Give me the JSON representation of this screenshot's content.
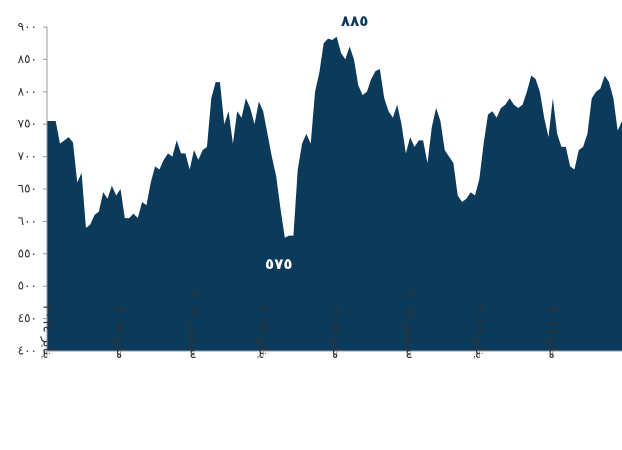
{
  "chart_data": {
    "type": "area",
    "color": "#0b3a5a",
    "categories": [
      "يناير ٢٠١٤",
      null,
      null,
      null,
      null,
      null,
      null,
      null,
      null,
      null,
      null,
      null,
      null,
      null,
      null,
      null,
      null,
      "مايو ٢٠١٤",
      null,
      null,
      null,
      null,
      null,
      null,
      null,
      null,
      null,
      null,
      null,
      null,
      null,
      null,
      null,
      null,
      "سبتمبر ٢٠١٤",
      null,
      null,
      null,
      null,
      null,
      null,
      null,
      null,
      null,
      null,
      null,
      null,
      null,
      null,
      null,
      "يناير ٢٠١٥",
      null,
      null,
      null,
      null,
      null,
      null,
      null,
      null,
      null,
      null,
      null,
      null,
      null,
      null,
      null,
      null,
      "مايو ٢٠١٥",
      null,
      null,
      null,
      null,
      null,
      null,
      null,
      null,
      null,
      null,
      null,
      null,
      null,
      null,
      null,
      null,
      "سبتمبر ٢٠١٥",
      null,
      null,
      null,
      null,
      null,
      null,
      null,
      null,
      null,
      null,
      null,
      null,
      null,
      null,
      null,
      "يناير ٢٠١٦",
      null,
      null,
      null,
      null,
      null,
      null,
      null,
      null,
      null,
      null,
      null,
      null,
      null,
      null,
      null,
      null,
      "مايو ٢٠١٦",
      null,
      null,
      null,
      null,
      null,
      null,
      null,
      null,
      null,
      null,
      null,
      null,
      null,
      null,
      null,
      null
    ],
    "values": [
      755,
      755,
      755,
      720,
      725,
      730,
      722,
      660,
      675,
      590,
      595,
      610,
      615,
      645,
      635,
      655,
      640,
      650,
      605,
      605,
      612,
      605,
      630,
      625,
      660,
      685,
      680,
      695,
      705,
      700,
      725,
      705,
      705,
      680,
      710,
      695,
      710,
      715,
      790,
      815,
      815,
      750,
      770,
      720,
      770,
      760,
      790,
      775,
      750,
      785,
      770,
      735,
      700,
      670,
      620,
      575,
      578,
      578,
      680,
      720,
      735,
      720,
      800,
      830,
      875,
      882,
      880,
      885,
      860,
      850,
      870,
      850,
      810,
      795,
      800,
      820,
      832,
      835,
      790,
      770,
      760,
      780,
      750,
      705,
      730,
      715,
      725,
      725,
      690,
      745,
      775,
      755,
      710,
      700,
      690,
      640,
      630,
      635,
      645,
      640,
      665,
      720,
      765,
      770,
      760,
      775,
      780,
      790,
      780,
      775,
      780,
      800,
      825,
      820,
      800,
      760,
      730,
      790,
      735,
      715,
      715,
      685,
      680,
      710,
      715,
      735,
      790,
      800,
      805,
      825,
      815,
      790,
      740,
      755
    ],
    "ylim": [
      400,
      900
    ],
    "yticks": [
      {
        "value": 400,
        "label": "٤٠٠"
      },
      {
        "value": 450,
        "label": "٤٥٠"
      },
      {
        "value": 500,
        "label": "٥٠٠"
      },
      {
        "value": 550,
        "label": "٥٥٠"
      },
      {
        "value": 600,
        "label": "٦٠٠"
      },
      {
        "value": 650,
        "label": "٦٥٠"
      },
      {
        "value": 700,
        "label": "٧٠٠"
      },
      {
        "value": 750,
        "label": "٧٥٠"
      },
      {
        "value": 800,
        "label": "٨٠٠"
      },
      {
        "value": 850,
        "label": "٨٥٠"
      },
      {
        "value": 900,
        "label": "٩٠٠"
      }
    ],
    "annotations": [
      {
        "value": 885,
        "label": "٨٨٥"
      },
      {
        "value": 575,
        "label": "٥٧٥"
      }
    ]
  }
}
